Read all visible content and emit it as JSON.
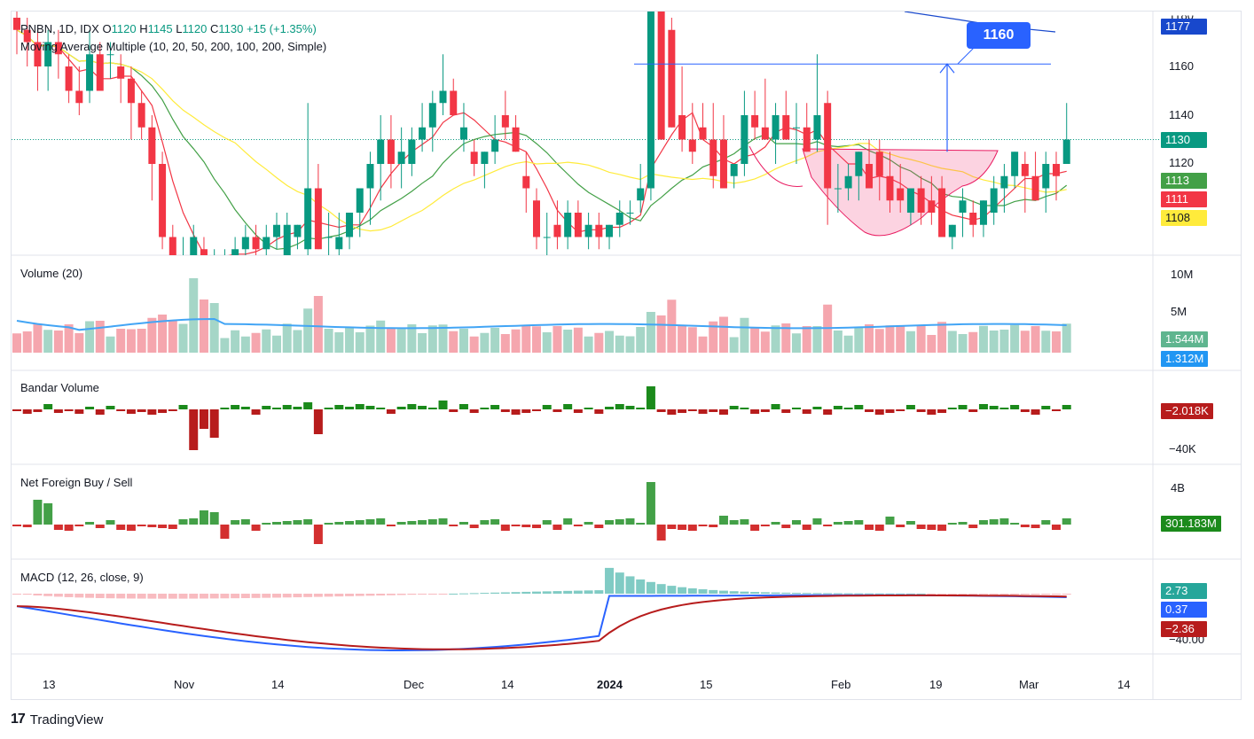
{
  "header": {
    "symbol": "PNBN, 1D, IDX",
    "open_label": "O",
    "open": "1120",
    "high_label": "H",
    "high": "1145",
    "low_label": "L",
    "low": "1120",
    "close_label": "C",
    "close": "1130",
    "change": "+15 (+1.35%)"
  },
  "indicators": {
    "ma_title": "Moving Average Multiple (10, 20, 50, 200, 100, 200, Simple)",
    "volume_title": "Volume (20)",
    "bandar_title": "Bandar Volume",
    "foreign_title": "Net Foreign Buy / Sell",
    "macd_title": "MACD (12, 26, close, 9)"
  },
  "price_axis": {
    "ticks": [
      "1160",
      "1140",
      "1120"
    ],
    "top_partial": "1180",
    "tags": [
      {
        "label": "1177",
        "color": "#1848cc"
      },
      {
        "label": "1130",
        "color": "#089981"
      },
      {
        "label": "1113",
        "color": "#43a047"
      },
      {
        "label": "1111",
        "color": "#f23645"
      },
      {
        "label": "1108",
        "color": "#ffeb3b"
      }
    ]
  },
  "volume_axis": {
    "ticks": [
      "10M",
      "5M"
    ],
    "tags": [
      {
        "label": "1.544M",
        "color": "#5fb58f"
      },
      {
        "label": "1.312M",
        "color": "#2196f3"
      }
    ]
  },
  "bandar_axis": {
    "ticks": [
      "−40K"
    ],
    "tags": [
      {
        "label": "−2.018K",
        "color": "#b71c1c"
      }
    ]
  },
  "foreign_axis": {
    "ticks": [
      "4B"
    ],
    "tags": [
      {
        "label": "301.183M",
        "color": "#1b8a1b"
      }
    ]
  },
  "macd_axis": {
    "ticks": [
      "−40.00"
    ],
    "tags": [
      {
        "label": "2.73",
        "color": "#26a69a"
      },
      {
        "label": "0.37",
        "color": "#2962ff"
      },
      {
        "label": "−2.36",
        "color": "#b71c1c"
      }
    ]
  },
  "target_label": "1160",
  "x_axis": {
    "labels": [
      "13",
      "Nov",
      "14",
      "Dec",
      "14",
      "2024",
      "15",
      "Feb",
      "19",
      "Mar",
      "14"
    ]
  },
  "brand": {
    "name": "TradingView"
  },
  "chart_data": {
    "type": "candlestick",
    "symbol": "PNBN",
    "interval": "1D",
    "exchange": "IDX",
    "ylim": [
      1085,
      1185
    ],
    "candles": [
      [
        1180,
        1190,
        1165,
        1175
      ],
      [
        1175,
        1180,
        1160,
        1170
      ],
      [
        1170,
        1175,
        1150,
        1160
      ],
      [
        1160,
        1175,
        1150,
        1170
      ],
      [
        1170,
        1175,
        1155,
        1165
      ],
      [
        1160,
        1165,
        1145,
        1150
      ],
      [
        1150,
        1160,
        1140,
        1145
      ],
      [
        1150,
        1175,
        1145,
        1165
      ],
      [
        1165,
        1170,
        1150,
        1150
      ],
      [
        1165,
        1170,
        1155,
        1165
      ],
      [
        1160,
        1165,
        1145,
        1155
      ],
      [
        1155,
        1160,
        1130,
        1145
      ],
      [
        1145,
        1150,
        1130,
        1135
      ],
      [
        1135,
        1140,
        1105,
        1120
      ],
      [
        1120,
        1125,
        1085,
        1090
      ],
      [
        1090,
        1095,
        1060,
        1075
      ],
      [
        1075,
        1090,
        1060,
        1080
      ],
      [
        1080,
        1095,
        1070,
        1090
      ],
      [
        1085,
        1090,
        1070,
        1080
      ],
      [
        1080,
        1085,
        1075,
        1080
      ],
      [
        1080,
        1085,
        1075,
        1080
      ],
      [
        1080,
        1090,
        1075,
        1085
      ],
      [
        1085,
        1095,
        1080,
        1090
      ],
      [
        1090,
        1095,
        1080,
        1085
      ],
      [
        1085,
        1095,
        1080,
        1090
      ],
      [
        1090,
        1100,
        1085,
        1095
      ],
      [
        1080,
        1100,
        1075,
        1095
      ],
      [
        1090,
        1095,
        1085,
        1095
      ],
      [
        1085,
        1145,
        1080,
        1110
      ],
      [
        1110,
        1120,
        1085,
        1085
      ],
      [
        1090,
        1100,
        1080,
        1090
      ],
      [
        1085,
        1100,
        1080,
        1090
      ],
      [
        1090,
        1100,
        1085,
        1100
      ],
      [
        1100,
        1110,
        1090,
        1110
      ],
      [
        1110,
        1125,
        1095,
        1120
      ],
      [
        1120,
        1140,
        1105,
        1130
      ],
      [
        1130,
        1140,
        1110,
        1120
      ],
      [
        1120,
        1135,
        1110,
        1125
      ],
      [
        1120,
        1135,
        1115,
        1130
      ],
      [
        1130,
        1145,
        1125,
        1135
      ],
      [
        1135,
        1150,
        1125,
        1145
      ],
      [
        1145,
        1165,
        1140,
        1150
      ],
      [
        1150,
        1155,
        1140,
        1140
      ],
      [
        1130,
        1145,
        1125,
        1135
      ],
      [
        1125,
        1130,
        1115,
        1120
      ],
      [
        1120,
        1125,
        1110,
        1125
      ],
      [
        1125,
        1140,
        1120,
        1130
      ],
      [
        1140,
        1150,
        1130,
        1135
      ],
      [
        1135,
        1140,
        1125,
        1125
      ],
      [
        1115,
        1125,
        1100,
        1110
      ],
      [
        1105,
        1110,
        1085,
        1090
      ],
      [
        1090,
        1100,
        1080,
        1090
      ],
      [
        1095,
        1105,
        1085,
        1090
      ],
      [
        1090,
        1105,
        1085,
        1100
      ],
      [
        1100,
        1105,
        1090,
        1090
      ],
      [
        1090,
        1100,
        1085,
        1095
      ],
      [
        1095,
        1100,
        1085,
        1090
      ],
      [
        1090,
        1095,
        1085,
        1095
      ],
      [
        1095,
        1105,
        1090,
        1100
      ],
      [
        1100,
        1105,
        1095,
        1100
      ],
      [
        1105,
        1120,
        1100,
        1110
      ],
      [
        1110,
        1190,
        1105,
        1185
      ],
      [
        1185,
        1190,
        1130,
        1130
      ],
      [
        1175,
        1180,
        1135,
        1135
      ],
      [
        1140,
        1160,
        1125,
        1130
      ],
      [
        1130,
        1145,
        1120,
        1125
      ],
      [
        1135,
        1145,
        1130,
        1130
      ],
      [
        1130,
        1145,
        1110,
        1115
      ],
      [
        1130,
        1140,
        1110,
        1110
      ],
      [
        1115,
        1120,
        1110,
        1120
      ],
      [
        1120,
        1150,
        1115,
        1140
      ],
      [
        1140,
        1150,
        1130,
        1135
      ],
      [
        1135,
        1155,
        1130,
        1130
      ],
      [
        1130,
        1145,
        1120,
        1140
      ],
      [
        1140,
        1150,
        1130,
        1130
      ],
      [
        1135,
        1145,
        1120,
        1135
      ],
      [
        1135,
        1145,
        1125,
        1125
      ],
      [
        1130,
        1165,
        1125,
        1140
      ],
      [
        1145,
        1150,
        1095,
        1110
      ],
      [
        1110,
        1120,
        1100,
        1110
      ],
      [
        1110,
        1120,
        1105,
        1115
      ],
      [
        1115,
        1125,
        1105,
        1125
      ],
      [
        1120,
        1130,
        1110,
        1110
      ],
      [
        1125,
        1130,
        1105,
        1115
      ],
      [
        1115,
        1125,
        1100,
        1105
      ],
      [
        1110,
        1120,
        1100,
        1105
      ],
      [
        1100,
        1110,
        1095,
        1110
      ],
      [
        1110,
        1115,
        1095,
        1100
      ],
      [
        1105,
        1115,
        1095,
        1100
      ],
      [
        1110,
        1115,
        1090,
        1090
      ],
      [
        1090,
        1095,
        1085,
        1095
      ],
      [
        1100,
        1110,
        1090,
        1105
      ],
      [
        1100,
        1105,
        1090,
        1095
      ],
      [
        1095,
        1105,
        1090,
        1105
      ],
      [
        1100,
        1115,
        1095,
        1110
      ],
      [
        1110,
        1120,
        1100,
        1115
      ],
      [
        1115,
        1125,
        1110,
        1125
      ],
      [
        1120,
        1125,
        1100,
        1115
      ],
      [
        1115,
        1125,
        1105,
        1105
      ],
      [
        1110,
        1125,
        1100,
        1120
      ],
      [
        1120,
        1125,
        1105,
        1115
      ],
      [
        1120,
        1145,
        1120,
        1130
      ]
    ],
    "ma_series": [
      {
        "color": "#f23645",
        "last": 1111
      },
      {
        "color": "#43a047",
        "last": 1113
      },
      {
        "color": "#ffeb3b",
        "last": 1108
      }
    ],
    "volume": {
      "last": "1.544M",
      "ma_last": "1.312M",
      "ymax_label": "10M"
    },
    "macd": {
      "macd_last": 2.73,
      "signal_last": 0.37,
      "hist_last": -2.36
    },
    "annotations": [
      "cup and handle pattern",
      "target 1160"
    ]
  }
}
